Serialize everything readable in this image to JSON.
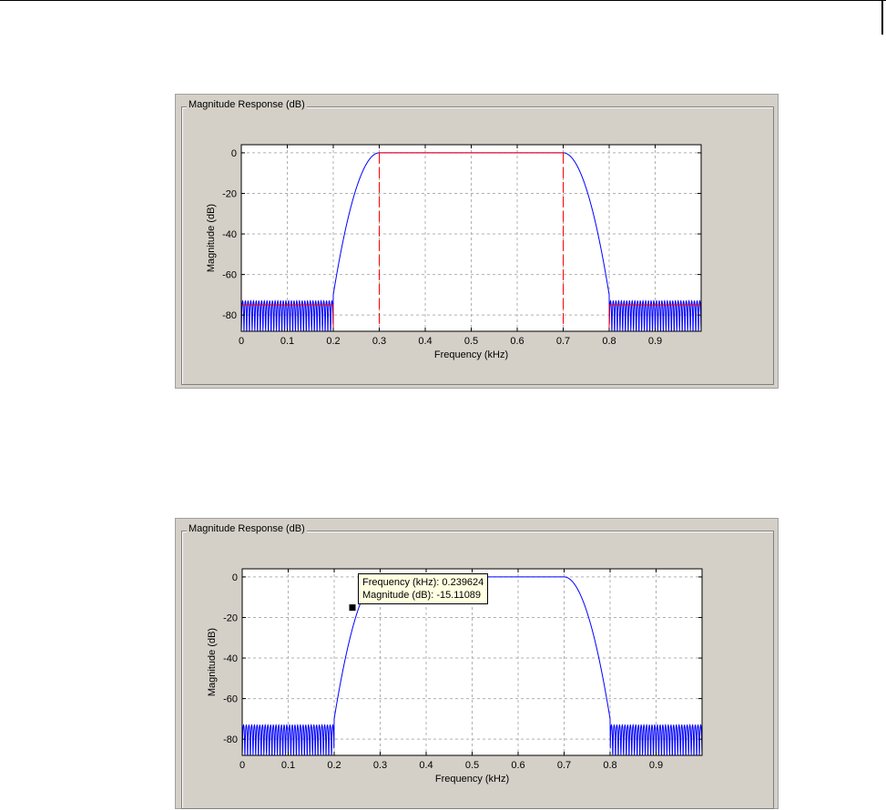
{
  "panels": [
    {
      "title": "Magnitude Response (dB)",
      "show_spec_mask": true,
      "datatip": null
    },
    {
      "title": "Magnitude Response (dB)",
      "show_spec_mask": false,
      "datatip": {
        "frequency_label": "Frequency (kHz): 0.239624",
        "magnitude_label": "Magnitude (dB): -15.11089",
        "frequency": 0.239624,
        "magnitude": -15.11089
      }
    }
  ],
  "chart_data": [
    {
      "type": "line",
      "title": "Magnitude Response (dB)",
      "xlabel": "Frequency (kHz)",
      "ylabel": "Magnitude (dB)",
      "xlim": [
        0,
        1
      ],
      "ylim": [
        -88,
        4
      ],
      "xticks": [
        "0",
        "0.1",
        "0.2",
        "0.3",
        "0.4",
        "0.5",
        "0.6",
        "0.7",
        "0.8",
        "0.9"
      ],
      "yticks": [
        "0",
        "-20",
        "-40",
        "-60",
        "-80"
      ],
      "grid": true,
      "series": [
        {
          "color": "#0000ff",
          "passband": [
            0.3,
            0.7
          ],
          "stopband_edges": [
            0.2,
            0.8
          ],
          "stopband_attenuation_db": -80,
          "passband_db": 0
        }
      ],
      "mask": {
        "color": "#ff0000",
        "stopband_level_db": -75,
        "passband_level_db": 0,
        "edges": [
          0.2,
          0.3,
          0.7,
          0.8
        ]
      }
    },
    {
      "type": "line",
      "title": "Magnitude Response (dB)",
      "xlabel": "Frequency (kHz)",
      "ylabel": "Magnitude (dB)",
      "xlim": [
        0,
        1
      ],
      "ylim": [
        -88,
        4
      ],
      "xticks": [
        "0",
        "0.1",
        "0.2",
        "0.3",
        "0.4",
        "0.5",
        "0.6",
        "0.7",
        "0.8",
        "0.9"
      ],
      "yticks": [
        "0",
        "-20",
        "-40",
        "-60",
        "-80"
      ],
      "grid": true,
      "series": [
        {
          "color": "#0000ff",
          "passband": [
            0.3,
            0.7
          ],
          "stopband_edges": [
            0.2,
            0.8
          ],
          "stopband_attenuation_db": -80,
          "passband_db": 0
        }
      ]
    }
  ]
}
